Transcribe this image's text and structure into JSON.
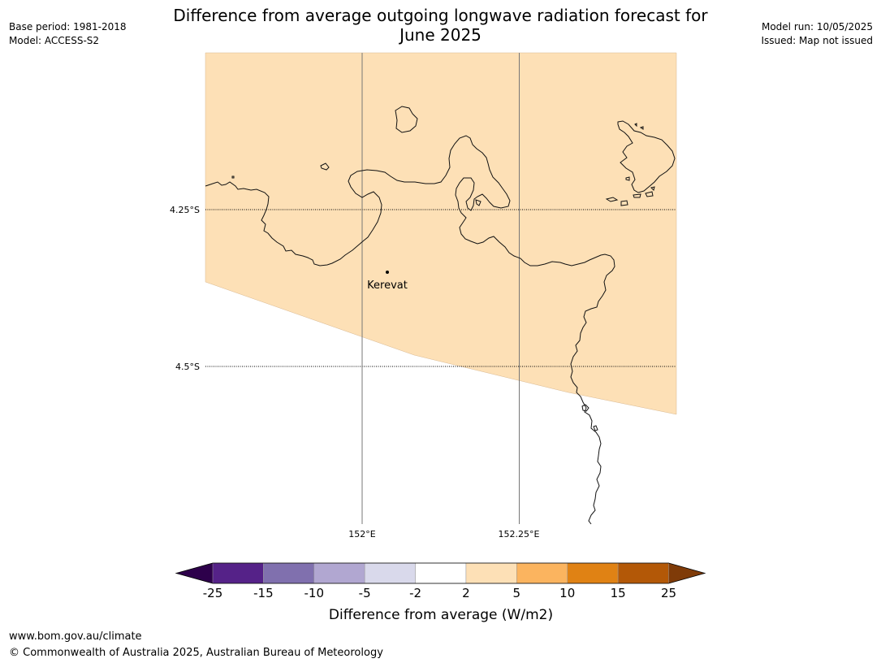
{
  "title_line1": "Difference from average outgoing longwave radiation forecast for",
  "title_line2": "June 2025",
  "base_period": "Base period: 1981-2018",
  "model": "Model: ACCESS-S2",
  "model_run": "Model run: 10/05/2025",
  "issued": "Issued: Map not issued",
  "map": {
    "lat_labels": [
      "4.25°S",
      "4.5°S"
    ],
    "lon_labels": [
      "152°E",
      "152.25°E"
    ],
    "place_name": "Kerevat",
    "fill_color": "#fde0b6"
  },
  "colorbar": {
    "label": "Difference from average (W/m2)",
    "ticks": [
      "-25",
      "-15",
      "-10",
      "-5",
      "-2",
      "2",
      "5",
      "10",
      "15",
      "25"
    ],
    "colors": [
      "#552288",
      "#8070ae",
      "#b1a7d1",
      "#d9d9eb",
      "#ffffff",
      "#fde0b6",
      "#fbb45f",
      "#e08214",
      "#b35807"
    ],
    "under_color": "#2d004b",
    "over_color": "#7f3b08"
  },
  "footer_url": "www.bom.gov.au/climate",
  "copyright": "© Commonwealth of Australia 2025, Australian Bureau of Meteorology"
}
